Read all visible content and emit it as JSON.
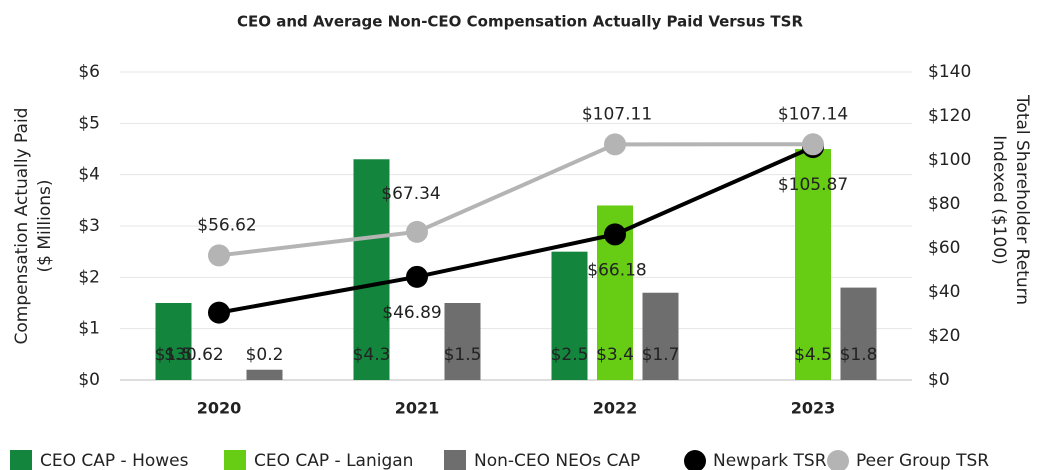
{
  "chart_data": {
    "type": "bar_line",
    "title": "CEO and Average Non-CEO Compensation Actually Paid Versus TSR",
    "y_label": [
      "Compensation Actually Paid",
      "($ Millions)"
    ],
    "y2_label": [
      "Total Shareholder Return",
      "Indexed ($100)"
    ],
    "categories": [
      "2020",
      "2021",
      "2022",
      "2023"
    ],
    "ylim": [
      0,
      6
    ],
    "yticks": [
      {
        "value": 0,
        "label": "$0"
      },
      {
        "value": 1,
        "label": "$1"
      },
      {
        "value": 2,
        "label": "$2"
      },
      {
        "value": 3,
        "label": "$3"
      },
      {
        "value": 4,
        "label": "$4"
      },
      {
        "value": 5,
        "label": "$5"
      },
      {
        "value": 6,
        "label": "$6"
      }
    ],
    "y2lim": [
      0,
      140
    ],
    "y2ticks": [
      {
        "value": 0,
        "label": "$0"
      },
      {
        "value": 20,
        "label": "$20"
      },
      {
        "value": 40,
        "label": "$40"
      },
      {
        "value": 60,
        "label": "$60"
      },
      {
        "value": 80,
        "label": "$80"
      },
      {
        "value": 100,
        "label": "$100"
      },
      {
        "value": 120,
        "label": "$120"
      },
      {
        "value": 140,
        "label": "$140"
      }
    ],
    "grid": true,
    "legend": "bottom",
    "series": [
      {
        "name": "CEO CAP - Howes",
        "kind": "bar",
        "color": "#13853d",
        "values": [
          1.5,
          4.3,
          2.5,
          null
        ],
        "value_labels": [
          "$1.5",
          "$4.3",
          "$2.5",
          null
        ]
      },
      {
        "name": "CEO CAP - Lanigan",
        "kind": "bar",
        "color": "#66cc14",
        "values": [
          null,
          null,
          3.4,
          4.5
        ],
        "value_labels": [
          null,
          null,
          "$3.4",
          "$4.5"
        ]
      },
      {
        "name": "Non-CEO NEOs CAP",
        "kind": "bar",
        "color": "#6e6e6e",
        "values": [
          0.2,
          1.5,
          1.7,
          1.8
        ],
        "value_labels": [
          "$0.2",
          "$1.5",
          "$1.7",
          "$1.8"
        ]
      },
      {
        "name": "Newpark TSR",
        "kind": "line",
        "axis": "y2",
        "color": "#000000",
        "values": [
          30.62,
          46.89,
          66.18,
          105.87
        ],
        "value_labels": [
          "$30.62",
          "$46.89",
          "$66.18",
          "$105.87"
        ]
      },
      {
        "name": "Peer Group TSR",
        "kind": "line",
        "axis": "y2",
        "color": "#b4b4b4",
        "values": [
          56.62,
          67.34,
          107.11,
          107.14
        ],
        "value_labels": [
          "$56.62",
          "$67.34",
          "$107.11",
          "$107.14"
        ]
      }
    ]
  }
}
